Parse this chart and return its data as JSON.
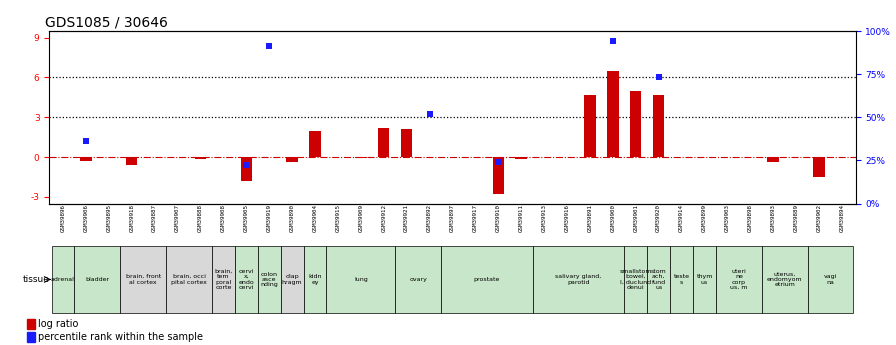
{
  "title": "GDS1085 / 30646",
  "samples": [
    "GSM39896",
    "GSM39906",
    "GSM39895",
    "GSM39918",
    "GSM39887",
    "GSM39907",
    "GSM39888",
    "GSM39908",
    "GSM39905",
    "GSM39919",
    "GSM39890",
    "GSM39904",
    "GSM39915",
    "GSM39909",
    "GSM39912",
    "GSM39921",
    "GSM39892",
    "GSM39897",
    "GSM39917",
    "GSM39910",
    "GSM39911",
    "GSM39913",
    "GSM39916",
    "GSM39891",
    "GSM39900",
    "GSM39901",
    "GSM39920",
    "GSM39914",
    "GSM39899",
    "GSM39903",
    "GSM39898",
    "GSM39893",
    "GSM39889",
    "GSM39902",
    "GSM39894"
  ],
  "log_ratio": [
    0.0,
    -0.3,
    0.0,
    -0.6,
    0.0,
    0.0,
    -0.15,
    0.0,
    -1.8,
    0.0,
    -0.4,
    2.0,
    0.0,
    -0.1,
    2.2,
    2.1,
    0.0,
    0.0,
    0.0,
    -2.8,
    -0.15,
    0.0,
    0.0,
    4.7,
    6.5,
    5.0,
    4.7,
    0.0,
    0.0,
    0.0,
    0.0,
    -0.4,
    0.0,
    -1.5,
    0.0
  ],
  "percentile_rank": [
    0,
    35,
    0,
    0,
    0,
    0,
    0,
    0,
    20,
    95,
    0,
    0,
    0,
    0,
    0,
    0,
    52,
    0,
    0,
    22,
    0,
    0,
    0,
    0,
    98,
    0,
    75,
    0,
    0,
    0,
    0,
    0,
    0,
    0,
    0
  ],
  "tissues": [
    {
      "label": "adrenal",
      "start": 0,
      "end": 1,
      "color": "#c8e6c9"
    },
    {
      "label": "bladder",
      "start": 1,
      "end": 3,
      "color": "#c8e6c9"
    },
    {
      "label": "brain, front\nal cortex",
      "start": 3,
      "end": 5,
      "color": "#d8d8d8"
    },
    {
      "label": "brain, occi\npital cortex",
      "start": 5,
      "end": 7,
      "color": "#d8d8d8"
    },
    {
      "label": "brain,\ntem\nporal\ncorte",
      "start": 7,
      "end": 8,
      "color": "#d8d8d8"
    },
    {
      "label": "cervi\nx,\nendo\ncervi",
      "start": 8,
      "end": 9,
      "color": "#c8e6c9"
    },
    {
      "label": "colon\nasce\nnding",
      "start": 9,
      "end": 10,
      "color": "#c8e6c9"
    },
    {
      "label": "diap\nhragm",
      "start": 10,
      "end": 11,
      "color": "#d8d8d8"
    },
    {
      "label": "kidn\ney",
      "start": 11,
      "end": 12,
      "color": "#c8e6c9"
    },
    {
      "label": "lung",
      "start": 12,
      "end": 15,
      "color": "#c8e6c9"
    },
    {
      "label": "ovary",
      "start": 15,
      "end": 17,
      "color": "#c8e6c9"
    },
    {
      "label": "prostate",
      "start": 17,
      "end": 21,
      "color": "#c8e6c9"
    },
    {
      "label": "salivary gland,\nparotid",
      "start": 21,
      "end": 25,
      "color": "#c8e6c9"
    },
    {
      "label": "smallstom\nbowel,\nI, duclund\ndenui",
      "start": 25,
      "end": 26,
      "color": "#c8e6c9"
    },
    {
      "label": "stom\nach,\nfund\nus",
      "start": 26,
      "end": 27,
      "color": "#c8e6c9"
    },
    {
      "label": "teste\ns",
      "start": 27,
      "end": 28,
      "color": "#c8e6c9"
    },
    {
      "label": "thym\nus",
      "start": 28,
      "end": 29,
      "color": "#c8e6c9"
    },
    {
      "label": "uteri\nne\ncorp\nus, m",
      "start": 29,
      "end": 31,
      "color": "#c8e6c9"
    },
    {
      "label": "uterus,\nendomyom\netrium",
      "start": 31,
      "end": 33,
      "color": "#c8e6c9"
    },
    {
      "label": "vagi\nna",
      "start": 33,
      "end": 35,
      "color": "#c8e6c9"
    }
  ],
  "ylim_left": [
    -3.5,
    9.5
  ],
  "ylim_right": [
    0,
    100
  ],
  "yticks_left": [
    -3,
    0,
    3,
    6,
    9
  ],
  "yticks_right": [
    0,
    25,
    50,
    75,
    100
  ],
  "bar_color_red": "#cc0000",
  "bar_color_blue": "#1a1aff",
  "dotted_line_color": "#000000",
  "zero_line_color": "#cc0000",
  "title_fontsize": 10,
  "tick_fontsize": 6.5,
  "tissue_fontsize": 4.5
}
